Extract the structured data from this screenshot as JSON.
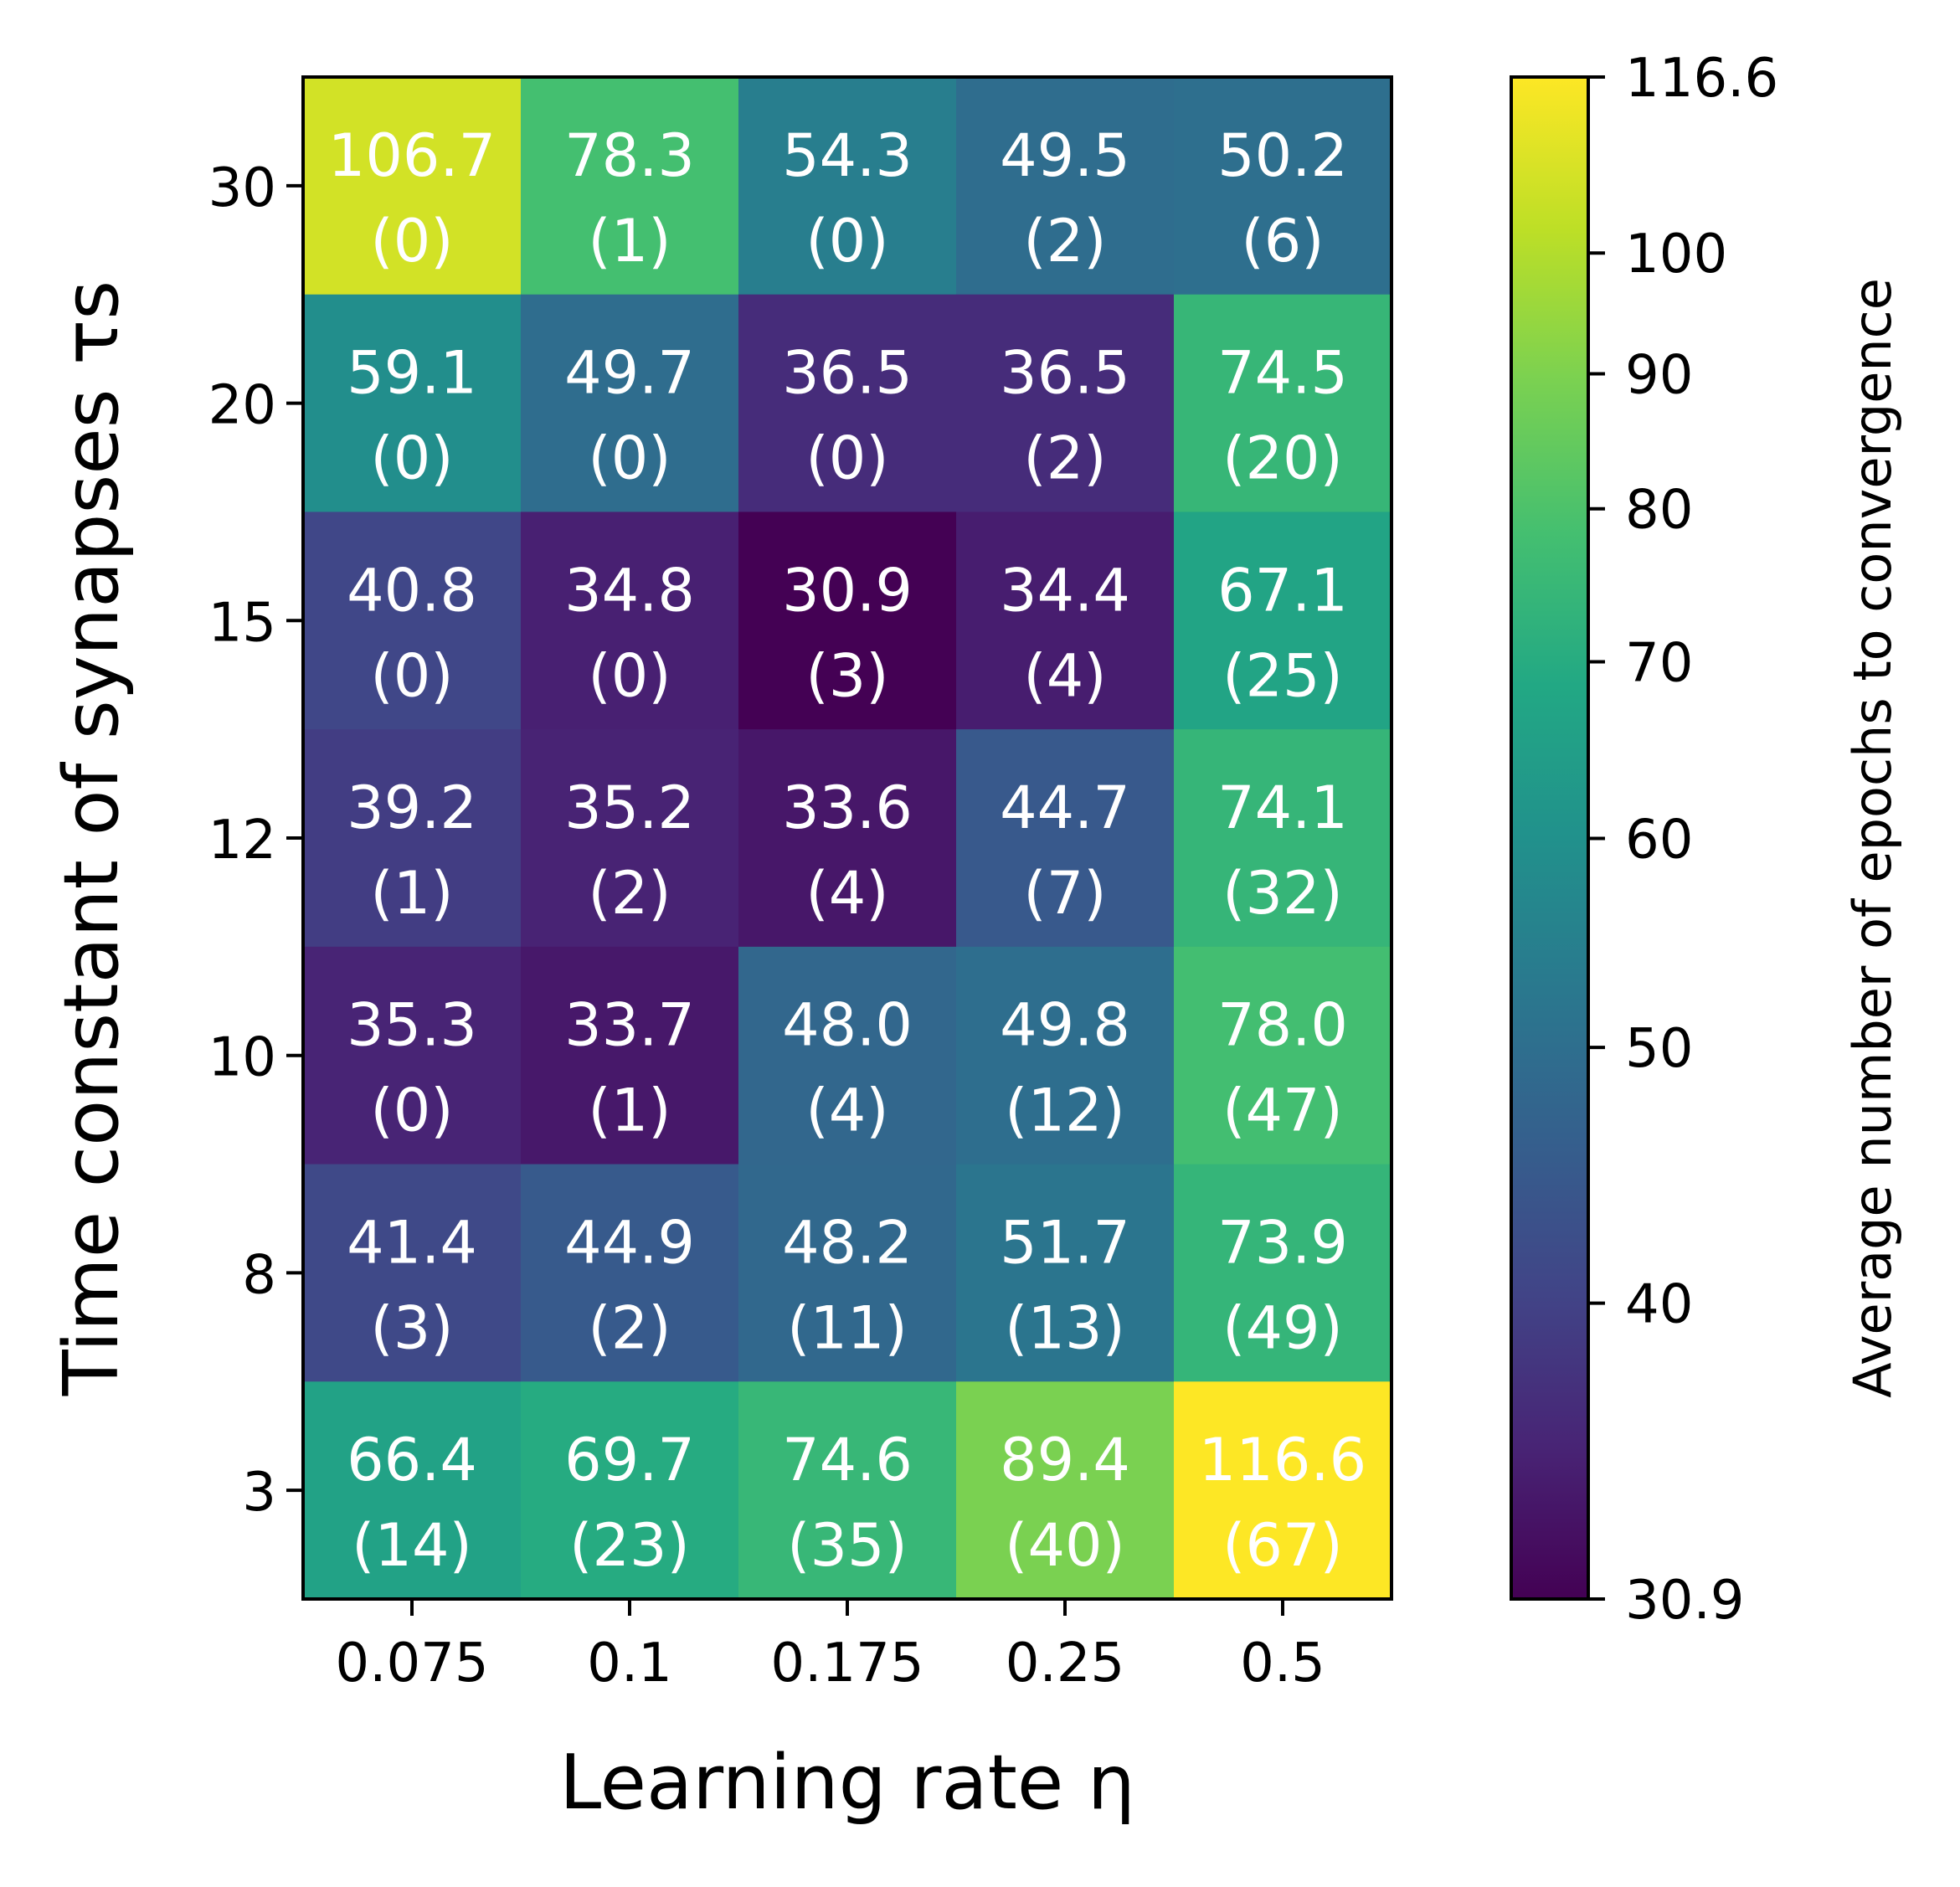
{
  "chart_data": {
    "type": "heatmap",
    "xlabel": "Learning rate η",
    "ylabel": "Time constant of synapses τs",
    "x_categories": [
      "0.075",
      "0.1",
      "0.175",
      "0.25",
      "0.5"
    ],
    "y_categories": [
      "30",
      "20",
      "15",
      "12",
      "10",
      "8",
      "3"
    ],
    "values": [
      [
        106.7,
        78.3,
        54.3,
        49.5,
        50.2
      ],
      [
        59.1,
        49.7,
        36.5,
        36.5,
        74.5
      ],
      [
        40.8,
        34.8,
        30.9,
        34.4,
        67.1
      ],
      [
        39.2,
        35.2,
        33.6,
        44.7,
        74.1
      ],
      [
        35.3,
        33.7,
        48.0,
        49.8,
        78.0
      ],
      [
        41.4,
        44.9,
        48.2,
        51.7,
        73.9
      ],
      [
        66.4,
        69.7,
        74.6,
        89.4,
        116.6
      ]
    ],
    "value_labels": [
      [
        "106.7",
        "78.3",
        "54.3",
        "49.5",
        "50.2"
      ],
      [
        "59.1",
        "49.7",
        "36.5",
        "36.5",
        "74.5"
      ],
      [
        "40.8",
        "34.8",
        "30.9",
        "34.4",
        "67.1"
      ],
      [
        "39.2",
        "35.2",
        "33.6",
        "44.7",
        "74.1"
      ],
      [
        "35.3",
        "33.7",
        "48.0",
        "49.8",
        "78.0"
      ],
      [
        "41.4",
        "44.9",
        "48.2",
        "51.7",
        "73.9"
      ],
      [
        "66.4",
        "69.7",
        "74.6",
        "89.4",
        "116.6"
      ]
    ],
    "counts": [
      [
        "(0)",
        "(1)",
        "(0)",
        "(2)",
        "(6)"
      ],
      [
        "(0)",
        "(0)",
        "(0)",
        "(2)",
        "(20)"
      ],
      [
        "(0)",
        "(0)",
        "(3)",
        "(4)",
        "(25)"
      ],
      [
        "(1)",
        "(2)",
        "(4)",
        "(7)",
        "(32)"
      ],
      [
        "(0)",
        "(1)",
        "(4)",
        "(12)",
        "(47)"
      ],
      [
        "(3)",
        "(2)",
        "(11)",
        "(13)",
        "(49)"
      ],
      [
        "(14)",
        "(23)",
        "(35)",
        "(40)",
        "(67)"
      ]
    ],
    "colorbar": {
      "label": "Average number of epochs to convergence",
      "min": 30.9,
      "max": 116.6,
      "scale": "log",
      "colormap": "viridis",
      "ticks": [
        30.9,
        40,
        50,
        60,
        70,
        80,
        90,
        100,
        116.6
      ],
      "tick_labels": [
        "30.9",
        "40",
        "50",
        "60",
        "70",
        "80",
        "90",
        "100",
        "116.6"
      ]
    },
    "grid": false
  }
}
